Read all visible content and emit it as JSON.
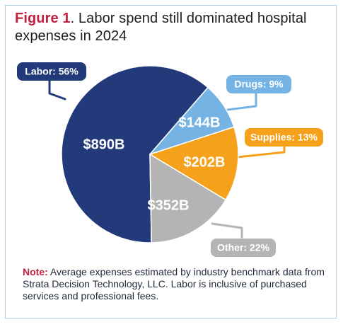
{
  "figure": {
    "label": "Figure 1",
    "title_rest": ". Labor spend still dominated hospital expenses in 2024"
  },
  "chart_data": {
    "type": "pie",
    "title": "Figure 1. Labor spend still dominated hospital expenses in 2024",
    "slices": [
      {
        "name": "Labor",
        "value": 890,
        "value_label": "$890B",
        "percent": 56,
        "callout": "Labor: 56%",
        "color": "#233a7a"
      },
      {
        "name": "Drugs",
        "value": 144,
        "value_label": "$144B",
        "percent": 9,
        "callout": "Drugs: 9%",
        "color": "#74b3e3"
      },
      {
        "name": "Supplies",
        "value": 202,
        "value_label": "$202B",
        "percent": 13,
        "callout": "Supplies: 13%",
        "color": "#f5a11c"
      },
      {
        "name": "Other",
        "value": 352,
        "value_label": "$352B",
        "percent": 22,
        "callout": "Other: 22%",
        "color": "#b4b4b4"
      }
    ]
  },
  "note": {
    "label": "Note:",
    "text": " Average expenses estimated by industry benchmark data from Strata Decision Technology, LLC. Labor is inclusive of purchased services and professional fees."
  }
}
